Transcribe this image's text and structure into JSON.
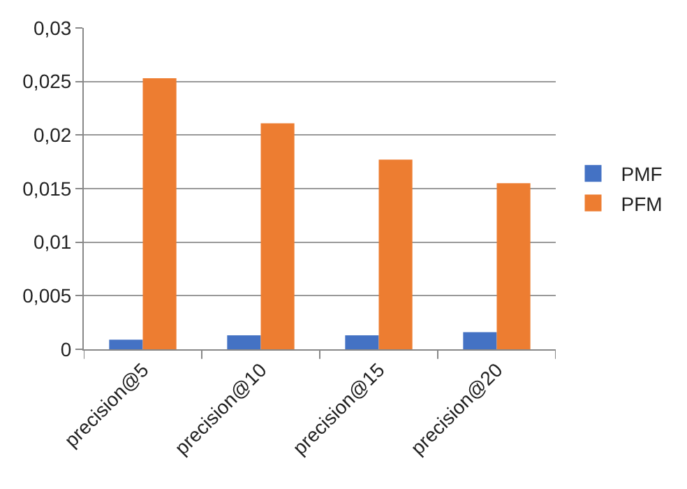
{
  "chart_data": {
    "type": "bar",
    "categories": [
      "precision@5",
      "precision@10",
      "precision@15",
      "precision@20"
    ],
    "series": [
      {
        "name": "PMF",
        "color": "#4472c4",
        "values": [
          0.0009,
          0.0013,
          0.0013,
          0.0016
        ]
      },
      {
        "name": "PFM",
        "color": "#ed7d31",
        "values": [
          0.0253,
          0.0211,
          0.0177,
          0.0155
        ]
      }
    ],
    "ylim": [
      0,
      0.03
    ],
    "yticks": [
      0,
      {
        "value": 0.005,
        "label": "0,005"
      },
      {
        "value": 0.01,
        "label": "0,01"
      },
      {
        "value": 0.015,
        "label": "0,015"
      },
      {
        "value": 0.02,
        "label": "0,02"
      },
      {
        "value": 0.025,
        "label": "0,025"
      },
      {
        "value": 0.03,
        "label": "0,03"
      }
    ],
    "grid": "y",
    "legend": "right"
  }
}
